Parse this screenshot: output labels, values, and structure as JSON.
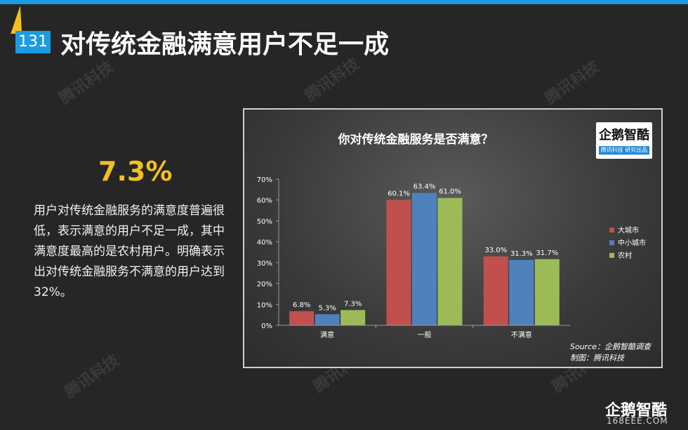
{
  "slide": {
    "page_number": "131",
    "title": "对传统金融满意用户不足一成",
    "highlight_value": "7.3%",
    "description": "用户对传统金融服务的满意度普遍很低，表示满意的用户不足一成，其中满意度最高的是农村用户。明确表示出对传统金融服务不满意的用户达到32%。",
    "watermark": "腾讯科技"
  },
  "branding": {
    "badge_title": "企鹅智酷",
    "badge_subtitle": "腾讯科技 研究出品",
    "corner_logo": "企鹅智酷",
    "corner_site": "168EEE.COM"
  },
  "colors": {
    "accent_blue": "#1e9be0",
    "accent_yellow": "#f3c01c"
  },
  "chart_data": {
    "type": "bar",
    "title": "你对传统金融服务是否满意？",
    "categories": [
      "满意",
      "一般",
      "不满意"
    ],
    "series": [
      {
        "name": "大城市",
        "color": "#c0504d",
        "values": [
          6.8,
          60.1,
          33.0
        ],
        "labels": [
          "6.8%",
          "60.1%",
          "33.0%"
        ]
      },
      {
        "name": "中小城市",
        "color": "#4f81bd",
        "values": [
          5.3,
          63.4,
          31.3
        ],
        "labels": [
          "5.3%",
          "63.4%",
          "31.3%"
        ]
      },
      {
        "name": "农村",
        "color": "#9bbb59",
        "values": [
          7.3,
          61.0,
          31.7
        ],
        "labels": [
          "7.3%",
          "61.0%",
          "31.7%"
        ]
      }
    ],
    "ylim": [
      0,
      70
    ],
    "yticks": [
      "0%",
      "10%",
      "20%",
      "30%",
      "40%",
      "50%",
      "60%",
      "70%"
    ],
    "grid": false,
    "legend_position": "right",
    "source": "Source：企鹅智酷调查",
    "credit": "制图：腾讯科技"
  }
}
